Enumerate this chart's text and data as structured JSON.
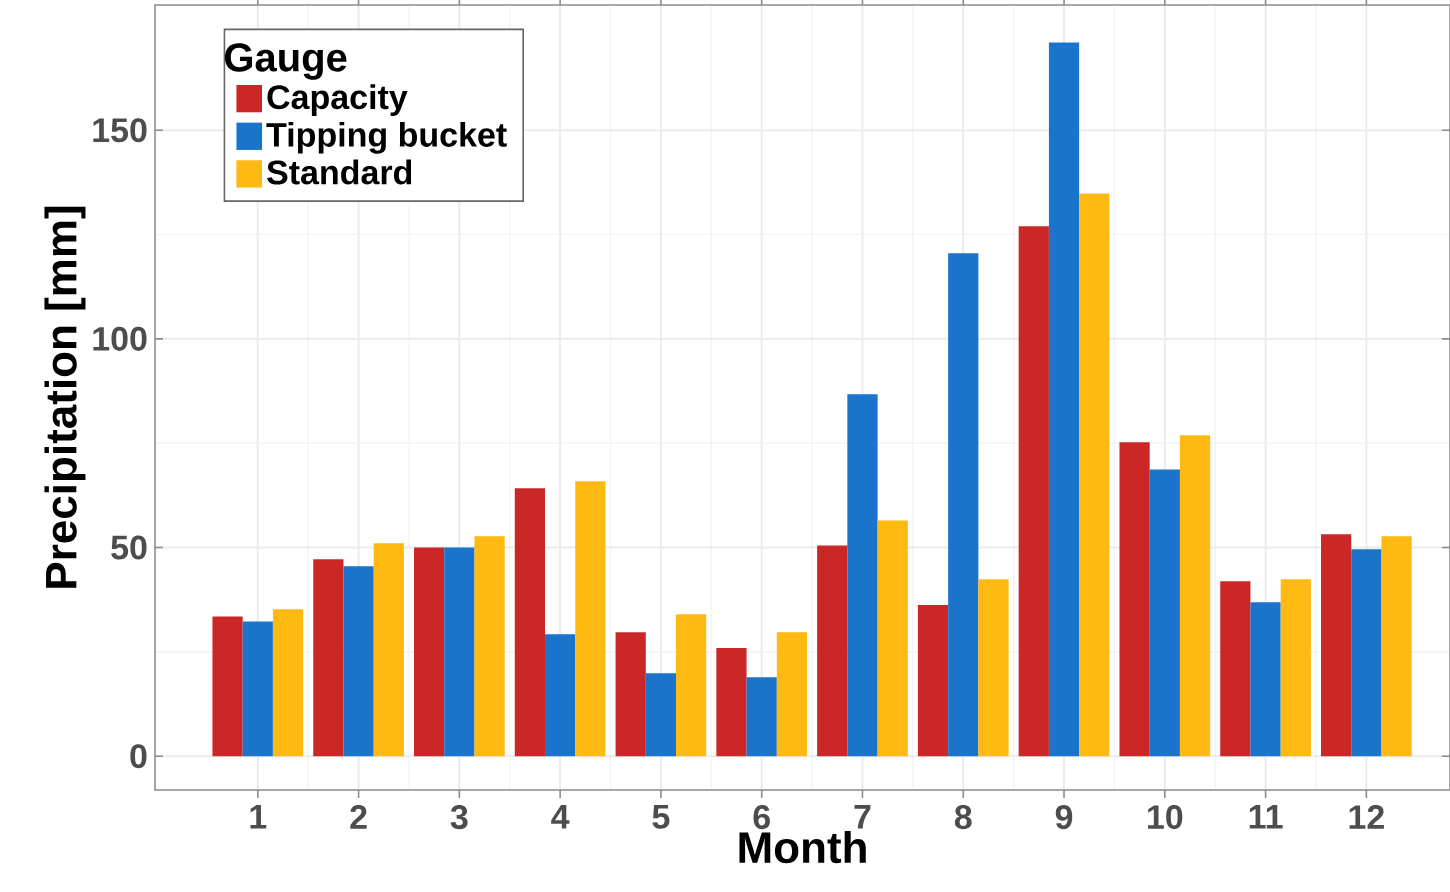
{
  "chart_data": {
    "type": "bar",
    "xlabel": "Month",
    "ylabel": "Precipitation [mm]",
    "legend_title": "Gauge",
    "categories": [
      "1",
      "2",
      "3",
      "4",
      "5",
      "6",
      "7",
      "8",
      "9",
      "10",
      "11",
      "12"
    ],
    "series": [
      {
        "name": "Capacity",
        "color": "#cc2727",
        "values": [
          33.5,
          47.2,
          50,
          64.2,
          29.7,
          25.9,
          50.5,
          36.2,
          127,
          75.2,
          41.9,
          53.2
        ]
      },
      {
        "name": "Tipping bucket",
        "color": "#1b74cc",
        "values": [
          32.3,
          45.5,
          50,
          29.2,
          19.9,
          18.9,
          86.7,
          120.5,
          171,
          68.7,
          36.9,
          49.6
        ]
      },
      {
        "name": "Standard",
        "color": "#feb913",
        "values": [
          35.2,
          51.0,
          52.7,
          65.9,
          34.0,
          29.7,
          56.5,
          42.4,
          134.8,
          76.9,
          42.4,
          52.7
        ]
      }
    ],
    "ylim": [
      -8.1,
      180
    ],
    "yticks": [
      0,
      50,
      100,
      150
    ],
    "grid": true,
    "legend": "top left"
  }
}
